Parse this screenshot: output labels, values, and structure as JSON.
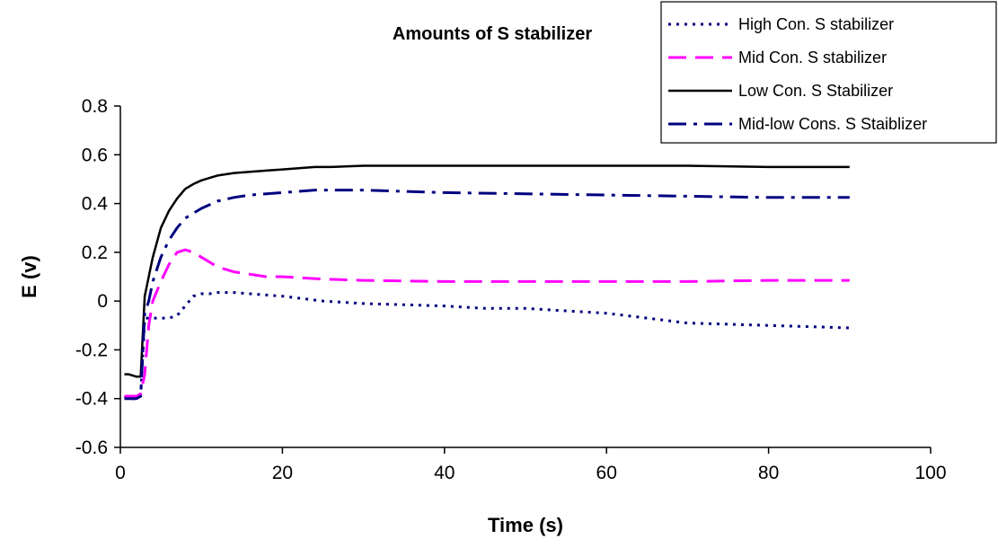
{
  "chart_data": {
    "type": "line",
    "title": "Amounts of S stabilizer",
    "xlabel": "Time (s)",
    "ylabel": "E (v)",
    "xlim": [
      0,
      100
    ],
    "ylim": [
      -0.6,
      0.8
    ],
    "xticks": [
      0,
      20,
      40,
      60,
      80,
      100
    ],
    "xtick_labels": [
      "0",
      "20",
      "40",
      "60",
      "80",
      "100"
    ],
    "yticks": [
      -0.6,
      -0.4,
      -0.2,
      0,
      0.2,
      0.4,
      0.6,
      0.8
    ],
    "ytick_labels": [
      "-0.6",
      "-0.4",
      "-0.2",
      "0",
      "0.2",
      "0.4",
      "0.6",
      "0.8"
    ],
    "grid": false,
    "legend_position": "top-right",
    "series": [
      {
        "name": "High Con. S stabilizer",
        "color": "#000080",
        "style": "dotted",
        "x": [
          0.5,
          1,
          2,
          2.5,
          3,
          3.5,
          4,
          5,
          6,
          7,
          8,
          9,
          10,
          11,
          12,
          14,
          16,
          18,
          20,
          25,
          30,
          35,
          40,
          45,
          50,
          55,
          60,
          65,
          70,
          75,
          80,
          85,
          90
        ],
        "y": [
          -0.39,
          -0.4,
          -0.4,
          -0.39,
          -0.07,
          -0.07,
          -0.07,
          -0.07,
          -0.07,
          -0.06,
          -0.02,
          0.02,
          0.03,
          0.03,
          0.035,
          0.035,
          0.03,
          0.025,
          0.02,
          0.0,
          -0.01,
          -0.015,
          -0.02,
          -0.03,
          -0.03,
          -0.04,
          -0.05,
          -0.07,
          -0.09,
          -0.095,
          -0.1,
          -0.105,
          -0.11
        ]
      },
      {
        "name": "Mid Con. S stabilizer",
        "color": "#FF00FF",
        "style": "dashed",
        "x": [
          0.5,
          1,
          2,
          2.5,
          3,
          3.5,
          4,
          5,
          6,
          7,
          8,
          9,
          10,
          11,
          12,
          14,
          16,
          18,
          20,
          25,
          30,
          40,
          50,
          60,
          70,
          80,
          90
        ],
        "y": [
          -0.39,
          -0.39,
          -0.39,
          -0.38,
          -0.3,
          -0.1,
          0.0,
          0.08,
          0.15,
          0.2,
          0.21,
          0.2,
          0.18,
          0.16,
          0.14,
          0.12,
          0.11,
          0.1,
          0.1,
          0.09,
          0.085,
          0.08,
          0.08,
          0.08,
          0.08,
          0.085,
          0.085
        ]
      },
      {
        "name": "Low Con. S Stabilizer",
        "color": "#000000",
        "style": "solid",
        "x": [
          0.5,
          1,
          2,
          2.5,
          3,
          3.5,
          4,
          5,
          6,
          7,
          8,
          9,
          10,
          11,
          12,
          13,
          14,
          16,
          18,
          20,
          22,
          24,
          26,
          30,
          35,
          40,
          50,
          60,
          70,
          80,
          90
        ],
        "y": [
          -0.3,
          -0.3,
          -0.31,
          -0.31,
          0.02,
          0.1,
          0.18,
          0.3,
          0.37,
          0.42,
          0.46,
          0.48,
          0.495,
          0.505,
          0.515,
          0.52,
          0.525,
          0.53,
          0.535,
          0.54,
          0.545,
          0.55,
          0.55,
          0.555,
          0.555,
          0.555,
          0.555,
          0.555,
          0.555,
          0.55,
          0.55
        ]
      },
      {
        "name": "Mid-low Cons. S Staiblizer",
        "color": "#000080",
        "style": "dashdot",
        "x": [
          0.5,
          1,
          2,
          2.5,
          3,
          3.5,
          4,
          5,
          6,
          7,
          8,
          9,
          10,
          12,
          14,
          16,
          18,
          20,
          22,
          24,
          26,
          30,
          35,
          40,
          50,
          60,
          70,
          80,
          90
        ],
        "y": [
          -0.4,
          -0.4,
          -0.4,
          -0.39,
          -0.05,
          0.0,
          0.08,
          0.18,
          0.25,
          0.3,
          0.34,
          0.36,
          0.38,
          0.41,
          0.425,
          0.435,
          0.44,
          0.445,
          0.45,
          0.455,
          0.455,
          0.455,
          0.45,
          0.445,
          0.44,
          0.435,
          0.43,
          0.425,
          0.425
        ]
      }
    ]
  }
}
